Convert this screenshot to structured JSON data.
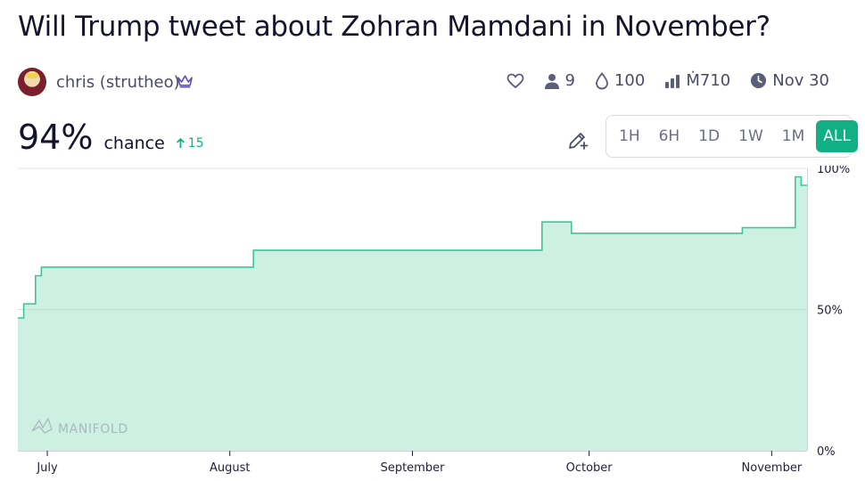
{
  "market": {
    "title": "Will Trump tweet about Zohran Mamdani in November?",
    "creator": "chris (strutheo)"
  },
  "stats": {
    "traders": "9",
    "liquidity": "100",
    "volume": "Ṁ710",
    "close_date": "Nov 30"
  },
  "probability": {
    "value": "94%",
    "label": "chance",
    "change": "15"
  },
  "time_ranges": [
    "1H",
    "6H",
    "1D",
    "1W",
    "1M",
    "ALL"
  ],
  "selected_range": "ALL",
  "colors": {
    "accent": "#11b084",
    "line": "#3cc69a",
    "fill": "#cdf0e3"
  },
  "chart_data": {
    "type": "area",
    "interpolation": "step-after",
    "x_ticks": [
      "July",
      "August",
      "September",
      "October",
      "November"
    ],
    "y_ticks": [
      "0%",
      "50%",
      "100%"
    ],
    "ylim": [
      0,
      100
    ],
    "xlim": [
      "2025-06-26",
      "2025-11-07"
    ],
    "watermark": "MANIFOLD",
    "x": [
      "2025-06-26",
      "2025-06-27",
      "2025-06-29",
      "2025-06-30",
      "2025-08-05",
      "2025-09-23",
      "2025-09-28",
      "2025-10-27",
      "2025-11-05",
      "2025-11-06"
    ],
    "y": [
      47,
      52,
      62,
      65,
      71,
      81,
      77,
      79,
      97,
      94
    ]
  }
}
